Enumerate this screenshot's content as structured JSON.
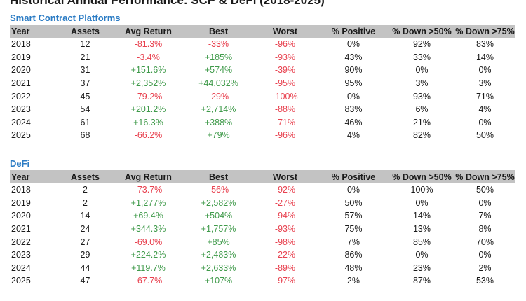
{
  "title": "Historical Annual Performance: SCP & DeFi (2018-2025)",
  "columns": [
    "Year",
    "Assets",
    "Avg Return",
    "Best",
    "Worst",
    "% Positive",
    "% Down >50%",
    "% Down >75%"
  ],
  "colors": {
    "negative": "#e8414f",
    "positive": "#3f9a4a",
    "section_label": "#2a7bc4",
    "header_bg": "#c3c3c3"
  },
  "tables": [
    {
      "label": "Smart Contract Platforms",
      "rows": [
        [
          "2018",
          "12",
          "-81.3%",
          "-33%",
          "-96%",
          "0%",
          "92%",
          "83%"
        ],
        [
          "2019",
          "21",
          "-3.4%",
          "+185%",
          "-93%",
          "43%",
          "33%",
          "14%"
        ],
        [
          "2020",
          "31",
          "+151.6%",
          "+574%",
          "-39%",
          "90%",
          "0%",
          "0%"
        ],
        [
          "2021",
          "37",
          "+2,352%",
          "+44,032%",
          "-95%",
          "95%",
          "3%",
          "3%"
        ],
        [
          "2022",
          "45",
          "-79.2%",
          "-29%",
          "-100%",
          "0%",
          "93%",
          "71%"
        ],
        [
          "2023",
          "54",
          "+201.2%",
          "+2,714%",
          "-88%",
          "83%",
          "6%",
          "4%"
        ],
        [
          "2024",
          "61",
          "+16.3%",
          "+388%",
          "-71%",
          "46%",
          "21%",
          "0%"
        ],
        [
          "2025",
          "68",
          "-66.2%",
          "+79%",
          "-96%",
          "4%",
          "82%",
          "50%"
        ]
      ]
    },
    {
      "label": "DeFi",
      "rows": [
        [
          "2018",
          "2",
          "-73.7%",
          "-56%",
          "-92%",
          "0%",
          "100%",
          "50%"
        ],
        [
          "2019",
          "2",
          "+1,277%",
          "+2,582%",
          "-27%",
          "50%",
          "0%",
          "0%"
        ],
        [
          "2020",
          "14",
          "+69.4%",
          "+504%",
          "-94%",
          "57%",
          "14%",
          "7%"
        ],
        [
          "2021",
          "24",
          "+344.3%",
          "+1,757%",
          "-93%",
          "75%",
          "13%",
          "8%"
        ],
        [
          "2022",
          "27",
          "-69.0%",
          "+85%",
          "-98%",
          "7%",
          "85%",
          "70%"
        ],
        [
          "2023",
          "29",
          "+224.2%",
          "+2,483%",
          "-22%",
          "86%",
          "0%",
          "0%"
        ],
        [
          "2024",
          "44",
          "+119.7%",
          "+2,633%",
          "-89%",
          "48%",
          "23%",
          "2%"
        ],
        [
          "2025",
          "47",
          "-67.7%",
          "+107%",
          "-97%",
          "2%",
          "87%",
          "53%"
        ]
      ]
    }
  ]
}
